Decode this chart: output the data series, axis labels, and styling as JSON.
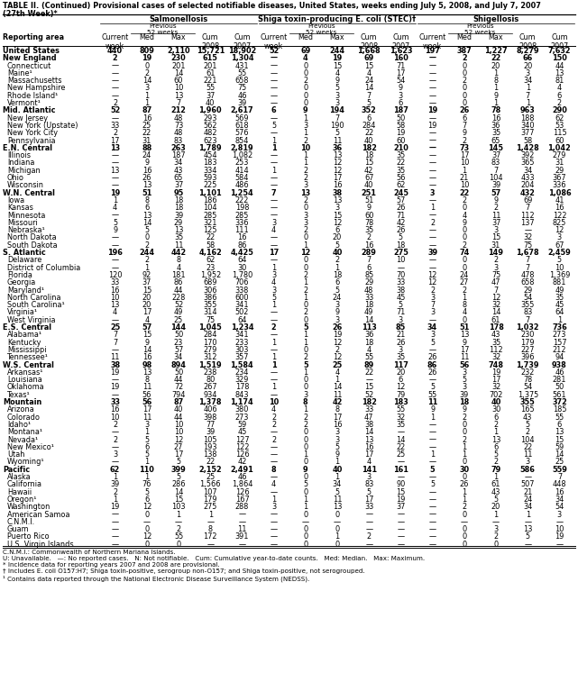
{
  "title1": "TABLE II. (Continued) Provisional cases of selected notifiable diseases, United States, weeks ending July 5, 2008, and July 7, 2007",
  "title2": "(27th Week)*",
  "section_headers": [
    "Salmonellosis",
    "Shiga toxin-producing E. coli (STEC)†",
    "Shigellosis"
  ],
  "col_labels": [
    "Reporting area",
    "Current\nweek",
    "Med",
    "Max",
    "Cum\n2008",
    "Cum\n2007",
    "Current\nweek",
    "Med",
    "Max",
    "Cum\n2008",
    "Cum\n2007",
    "Current\nweek",
    "Med",
    "Max",
    "Cum\n2008",
    "Cum\n2007"
  ],
  "rows": [
    [
      "United States",
      "440",
      "809",
      "2,110",
      "15,721",
      "18,902",
      "52",
      "69",
      "244",
      "1,668",
      "1,623",
      "197",
      "387",
      "1,227",
      "8,279",
      "7,632"
    ],
    [
      "New England",
      "2",
      "19",
      "230",
      "615",
      "1,304",
      "—",
      "4",
      "19",
      "69",
      "160",
      "—",
      "2",
      "22",
      "66",
      "150"
    ],
    [
      "Connecticut",
      "—",
      "0",
      "201",
      "201",
      "431",
      "—",
      "0",
      "15",
      "15",
      "71",
      "—",
      "0",
      "20",
      "20",
      "44"
    ],
    [
      "Maine¹",
      "—",
      "2",
      "14",
      "61",
      "55",
      "—",
      "0",
      "4",
      "4",
      "17",
      "—",
      "0",
      "1",
      "3",
      "13"
    ],
    [
      "Massachusetts",
      "—",
      "14",
      "60",
      "221",
      "658",
      "—",
      "2",
      "9",
      "24",
      "54",
      "—",
      "2",
      "8",
      "34",
      "81"
    ],
    [
      "New Hampshire",
      "—",
      "3",
      "10",
      "55",
      "75",
      "—",
      "0",
      "5",
      "14",
      "9",
      "—",
      "0",
      "1",
      "1",
      "4"
    ],
    [
      "Rhode Island¹",
      "—",
      "1",
      "13",
      "37",
      "46",
      "—",
      "0",
      "3",
      "7",
      "3",
      "—",
      "0",
      "9",
      "7",
      "6"
    ],
    [
      "Vermont¹",
      "2",
      "1",
      "7",
      "40",
      "39",
      "—",
      "0",
      "3",
      "5",
      "6",
      "—",
      "0",
      "1",
      "1",
      "2"
    ],
    [
      "Mid. Atlantic",
      "52",
      "87",
      "212",
      "1,960",
      "2,617",
      "6",
      "9",
      "194",
      "352",
      "187",
      "19",
      "26",
      "78",
      "963",
      "290"
    ],
    [
      "New Jersey",
      "—",
      "16",
      "48",
      "293",
      "569",
      "—",
      "1",
      "7",
      "6",
      "50",
      "—",
      "6",
      "16",
      "188",
      "62"
    ],
    [
      "New York (Upstate)",
      "33",
      "25",
      "73",
      "562",
      "618",
      "5",
      "3",
      "190",
      "284",
      "58",
      "19",
      "7",
      "36",
      "340",
      "53"
    ],
    [
      "New York City",
      "2",
      "22",
      "48",
      "482",
      "576",
      "—",
      "1",
      "5",
      "22",
      "19",
      "—",
      "9",
      "35",
      "377",
      "115"
    ],
    [
      "Pennsylvania",
      "17",
      "31",
      "83",
      "623",
      "854",
      "1",
      "2",
      "11",
      "40",
      "60",
      "—",
      "2",
      "65",
      "58",
      "60"
    ],
    [
      "E.N. Central",
      "13",
      "88",
      "263",
      "1,789",
      "2,819",
      "1",
      "10",
      "36",
      "182",
      "210",
      "—",
      "73",
      "145",
      "1,428",
      "1,042"
    ],
    [
      "Illinois",
      "—",
      "24",
      "187",
      "454",
      "1,082",
      "—",
      "1",
      "13",
      "18",
      "35",
      "—",
      "17",
      "37",
      "392",
      "279"
    ],
    [
      "Indiana",
      "—",
      "9",
      "34",
      "183",
      "253",
      "—",
      "1",
      "12",
      "15",
      "22",
      "—",
      "10",
      "83",
      "365",
      "31"
    ],
    [
      "Michigan",
      "13",
      "16",
      "43",
      "334",
      "414",
      "1",
      "2",
      "12",
      "42",
      "35",
      "—",
      "1",
      "7",
      "34",
      "29"
    ],
    [
      "Ohio",
      "—",
      "26",
      "65",
      "593",
      "584",
      "—",
      "2",
      "17",
      "67",
      "56",
      "—",
      "21",
      "104",
      "433",
      "367"
    ],
    [
      "Wisconsin",
      "—",
      "13",
      "37",
      "225",
      "486",
      "—",
      "3",
      "16",
      "40",
      "62",
      "—",
      "10",
      "39",
      "204",
      "336"
    ],
    [
      "W.N. Central",
      "19",
      "51",
      "95",
      "1,101",
      "1,254",
      "7",
      "13",
      "38",
      "251",
      "245",
      "3",
      "22",
      "57",
      "432",
      "1,086"
    ],
    [
      "Iowa",
      "1",
      "8",
      "18",
      "186",
      "222",
      "—",
      "2",
      "13",
      "51",
      "57",
      "—",
      "2",
      "9",
      "69",
      "41"
    ],
    [
      "Kansas",
      "4",
      "6",
      "18",
      "104",
      "198",
      "—",
      "0",
      "3",
      "9",
      "26",
      "1",
      "0",
      "2",
      "7",
      "16"
    ],
    [
      "Minnesota",
      "—",
      "13",
      "39",
      "285",
      "285",
      "—",
      "3",
      "15",
      "60",
      "71",
      "—",
      "4",
      "11",
      "112",
      "122"
    ],
    [
      "Missouri",
      "5",
      "14",
      "29",
      "321",
      "336",
      "3",
      "3",
      "12",
      "78",
      "42",
      "2",
      "9",
      "37",
      "137",
      "825"
    ],
    [
      "Nebraska¹",
      "9",
      "5",
      "13",
      "125",
      "111",
      "4",
      "2",
      "6",
      "35",
      "26",
      "—",
      "0",
      "3",
      "—",
      "12"
    ],
    [
      "North Dakota",
      "—",
      "0",
      "35",
      "22",
      "16",
      "—",
      "0",
      "20",
      "2",
      "5",
      "—",
      "0",
      "15",
      "32",
      "3"
    ],
    [
      "South Dakota",
      "—",
      "2",
      "11",
      "58",
      "86",
      "—",
      "1",
      "5",
      "16",
      "18",
      "—",
      "2",
      "31",
      "75",
      "67"
    ],
    [
      "S. Atlantic",
      "196",
      "244",
      "442",
      "4,162",
      "4,425",
      "17",
      "12",
      "40",
      "289",
      "275",
      "39",
      "74",
      "149",
      "1,678",
      "2,459"
    ],
    [
      "Delaware",
      "—",
      "2",
      "8",
      "62",
      "64",
      "—",
      "0",
      "2",
      "7",
      "10",
      "—",
      "0",
      "2",
      "7",
      "5"
    ],
    [
      "District of Columbia",
      "—",
      "1",
      "4",
      "23",
      "30",
      "1",
      "0",
      "1",
      "6",
      "—",
      "—",
      "0",
      "3",
      "7",
      "10"
    ],
    [
      "Florida",
      "120",
      "92",
      "181",
      "1,952",
      "1,780",
      "3",
      "2",
      "18",
      "85",
      "70",
      "12",
      "24",
      "75",
      "478",
      "1,369"
    ],
    [
      "Georgia",
      "33",
      "37",
      "86",
      "689",
      "706",
      "4",
      "1",
      "6",
      "29",
      "33",
      "12",
      "27",
      "47",
      "658",
      "881"
    ],
    [
      "Maryland¹",
      "16",
      "15",
      "44",
      "306",
      "338",
      "3",
      "2",
      "5",
      "48",
      "38",
      "2",
      "2",
      "7",
      "29",
      "49"
    ],
    [
      "North Carolina",
      "10",
      "20",
      "228",
      "386",
      "600",
      "5",
      "1",
      "24",
      "33",
      "45",
      "3",
      "1",
      "12",
      "54",
      "35"
    ],
    [
      "South Carolina¹",
      "13",
      "20",
      "52",
      "355",
      "341",
      "1",
      "0",
      "3",
      "18",
      "5",
      "7",
      "8",
      "32",
      "355",
      "45"
    ],
    [
      "Virginia¹",
      "4",
      "17",
      "49",
      "314",
      "502",
      "—",
      "2",
      "9",
      "49",
      "71",
      "3",
      "4",
      "14",
      "83",
      "64"
    ],
    [
      "West Virginia",
      "—",
      "4",
      "25",
      "75",
      "64",
      "—",
      "0",
      "3",
      "14",
      "3",
      "—",
      "0",
      "61",
      "7",
      "1"
    ],
    [
      "E.S. Central",
      "25",
      "57",
      "144",
      "1,045",
      "1,234",
      "2",
      "5",
      "26",
      "113",
      "85",
      "34",
      "51",
      "178",
      "1,032",
      "736"
    ],
    [
      "Alabama¹",
      "7",
      "15",
      "50",
      "284",
      "341",
      "—",
      "1",
      "19",
      "36",
      "21",
      "3",
      "13",
      "43",
      "230",
      "273"
    ],
    [
      "Kentucky",
      "7",
      "9",
      "23",
      "170",
      "233",
      "1",
      "1",
      "12",
      "18",
      "26",
      "5",
      "9",
      "35",
      "179",
      "157"
    ],
    [
      "Mississippi",
      "—",
      "14",
      "57",
      "279",
      "303",
      "—",
      "0",
      "2",
      "4",
      "3",
      "—",
      "17",
      "112",
      "227",
      "212"
    ],
    [
      "Tennessee¹",
      "11",
      "16",
      "34",
      "312",
      "357",
      "1",
      "2",
      "12",
      "55",
      "35",
      "26",
      "11",
      "32",
      "396",
      "94"
    ],
    [
      "W.S. Central",
      "38",
      "98",
      "894",
      "1,519",
      "1,584",
      "1",
      "5",
      "25",
      "89",
      "117",
      "86",
      "56",
      "748",
      "1,739",
      "938"
    ],
    [
      "Arkansas¹",
      "19",
      "13",
      "50",
      "238",
      "234",
      "—",
      "1",
      "4",
      "22",
      "20",
      "26",
      "3",
      "19",
      "232",
      "46"
    ],
    [
      "Louisiana",
      "—",
      "8",
      "44",
      "80",
      "329",
      "—",
      "0",
      "1",
      "—",
      "6",
      "—",
      "5",
      "17",
      "78",
      "281"
    ],
    [
      "Oklahoma",
      "19",
      "11",
      "72",
      "267",
      "178",
      "1",
      "0",
      "14",
      "15",
      "12",
      "5",
      "3",
      "32",
      "54",
      "50"
    ],
    [
      "Texas¹",
      "—",
      "56",
      "794",
      "934",
      "843",
      "—",
      "3",
      "11",
      "52",
      "79",
      "55",
      "39",
      "702",
      "1,375",
      "561"
    ],
    [
      "Mountain",
      "33",
      "56",
      "87",
      "1,378",
      "1,174",
      "10",
      "8",
      "42",
      "182",
      "183",
      "11",
      "18",
      "40",
      "355",
      "372"
    ],
    [
      "Arizona",
      "16",
      "17",
      "40",
      "406",
      "380",
      "4",
      "1",
      "8",
      "33",
      "55",
      "9",
      "9",
      "30",
      "165",
      "185"
    ],
    [
      "Colorado",
      "10",
      "11",
      "44",
      "398",
      "273",
      "2",
      "2",
      "17",
      "47",
      "32",
      "1",
      "2",
      "6",
      "43",
      "55"
    ],
    [
      "Idaho¹",
      "2",
      "3",
      "10",
      "77",
      "59",
      "2",
      "2",
      "16",
      "38",
      "35",
      "—",
      "0",
      "2",
      "5",
      "6"
    ],
    [
      "Montana¹",
      "—",
      "1",
      "10",
      "39",
      "45",
      "—",
      "0",
      "3",
      "14",
      "—",
      "—",
      "0",
      "1",
      "2",
      "13"
    ],
    [
      "Nevada¹",
      "2",
      "5",
      "12",
      "105",
      "127",
      "2",
      "0",
      "3",
      "13",
      "14",
      "—",
      "2",
      "13",
      "104",
      "15"
    ],
    [
      "New Mexico¹",
      "—",
      "6",
      "27",
      "193",
      "122",
      "—",
      "0",
      "5",
      "16",
      "22",
      "—",
      "1",
      "6",
      "22",
      "59"
    ],
    [
      "Utah",
      "3",
      "5",
      "17",
      "138",
      "126",
      "—",
      "1",
      "9",
      "17",
      "25",
      "1",
      "1",
      "5",
      "11",
      "14"
    ],
    [
      "Wyoming¹",
      "—",
      "1",
      "5",
      "22",
      "42",
      "—",
      "0",
      "1",
      "4",
      "—",
      "—",
      "0",
      "2",
      "3",
      "25"
    ],
    [
      "Pacific",
      "62",
      "110",
      "399",
      "2,152",
      "2,491",
      "8",
      "9",
      "40",
      "141",
      "161",
      "5",
      "30",
      "79",
      "586",
      "559"
    ],
    [
      "Alaska",
      "1",
      "1",
      "5",
      "25",
      "46",
      "—",
      "0",
      "1",
      "3",
      "—",
      "—",
      "0",
      "1",
      "—",
      "7"
    ],
    [
      "California",
      "39",
      "76",
      "286",
      "1,566",
      "1,864",
      "4",
      "5",
      "34",
      "83",
      "90",
      "5",
      "26",
      "61",
      "507",
      "448"
    ],
    [
      "Hawaii",
      "2",
      "5",
      "14",
      "107",
      "126",
      "—",
      "0",
      "5",
      "5",
      "15",
      "—",
      "1",
      "43",
      "21",
      "16"
    ],
    [
      "Oregon¹",
      "1",
      "6",
      "15",
      "179",
      "167",
      "1",
      "1",
      "11",
      "17",
      "19",
      "—",
      "1",
      "5",
      "24",
      "34"
    ],
    [
      "Washington",
      "19",
      "12",
      "103",
      "275",
      "288",
      "3",
      "1",
      "13",
      "33",
      "37",
      "—",
      "2",
      "20",
      "34",
      "54"
    ],
    [
      "American Samoa",
      "—",
      "0",
      "1",
      "1",
      "—",
      "—",
      "0",
      "0",
      "—",
      "—",
      "—",
      "0",
      "1",
      "1",
      "3"
    ],
    [
      "C.N.M.I.",
      "—",
      "—",
      "—",
      "—",
      "—",
      "—",
      "—",
      "—",
      "—",
      "—",
      "—",
      "—",
      "—",
      "—",
      "—"
    ],
    [
      "Guam",
      "—",
      "0",
      "2",
      "8",
      "11",
      "—",
      "0",
      "0",
      "—",
      "—",
      "—",
      "0",
      "3",
      "13",
      "10"
    ],
    [
      "Puerto Rico",
      "—",
      "12",
      "55",
      "172",
      "391",
      "—",
      "0",
      "1",
      "2",
      "—",
      "—",
      "0",
      "2",
      "5",
      "19"
    ],
    [
      "U.S. Virgin Islands",
      "—",
      "0",
      "0",
      "—",
      "—",
      "—",
      "0",
      "0",
      "—",
      "—",
      "—",
      "0",
      "0",
      "—",
      "—"
    ]
  ],
  "bold_rows": [
    0,
    1,
    8,
    13,
    19,
    27,
    37,
    42,
    47,
    56
  ],
  "footnotes": [
    "C.N.M.I.: Commonwealth of Northern Mariana Islands.",
    "U: Unavailable.   —: No reported cases.   N: Not notifiable.   Cum: Cumulative year-to-date counts.   Med: Median.   Max: Maximum.",
    "* Incidence data for reporting years 2007 and 2008 are provisional.",
    "† Includes E. coli O157:H7; Shiga toxin-positive, serogroup non-O157; and Shiga toxin-positive, not serogrouped.",
    "¹ Contains data reported through the National Electronic Disease Surveillance System (NEDSS)."
  ]
}
